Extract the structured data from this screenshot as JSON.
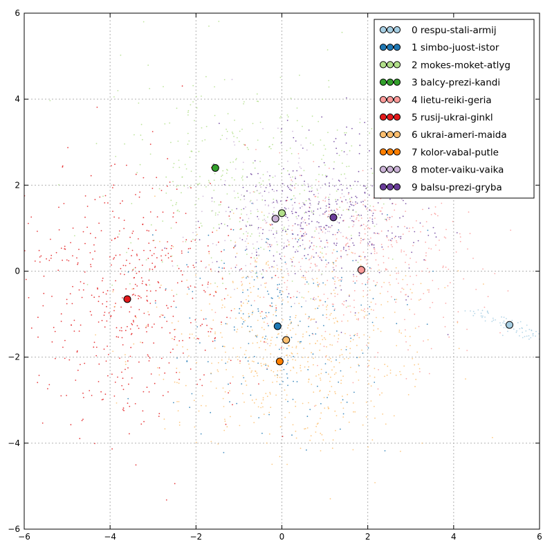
{
  "chart_data": {
    "type": "scatter",
    "title": "",
    "xlabel": "",
    "ylabel": "",
    "xlim": [
      -6,
      6
    ],
    "ylim": [
      -6,
      6
    ],
    "x_ticks": [
      "−6",
      "−4",
      "−2",
      "0",
      "2",
      "4",
      "6"
    ],
    "y_ticks": [
      "−6",
      "−4",
      "−2",
      "0",
      "2",
      "4",
      "6"
    ],
    "grid": true,
    "legend_position": "top-right",
    "series": [
      {
        "name": "0 respu-stali-armij",
        "color": "#a6cee3",
        "centroid": [
          5.3,
          -1.25
        ]
      },
      {
        "name": "1 simbo-juost-istor",
        "color": "#1f78b4",
        "centroid": [
          -0.1,
          -1.28
        ]
      },
      {
        "name": "2 mokes-moket-atlyg",
        "color": "#b2df8a",
        "centroid": [
          0.0,
          1.35
        ]
      },
      {
        "name": "3 balcy-prezi-kandi",
        "color": "#33a02c",
        "centroid": [
          -1.55,
          2.4
        ]
      },
      {
        "name": "4 lietu-reiki-geria",
        "color": "#fb9a99",
        "centroid": [
          1.85,
          0.03
        ]
      },
      {
        "name": "5 rusij-ukrai-ginkl",
        "color": "#e31a1c",
        "centroid": [
          -3.6,
          -0.65
        ]
      },
      {
        "name": "6 ukrai-ameri-maida",
        "color": "#fdbf6f",
        "centroid": [
          0.1,
          -1.6
        ]
      },
      {
        "name": "7 kolor-vabal-putle",
        "color": "#ff7f00",
        "centroid": [
          -0.05,
          -2.1
        ]
      },
      {
        "name": "8 moter-vaiku-vaika",
        "color": "#cab2d6",
        "centroid": [
          -0.15,
          1.22
        ]
      },
      {
        "name": "9 balsu-prezi-gryba",
        "color": "#6a3d9a",
        "centroid": [
          1.2,
          1.25
        ]
      }
    ],
    "point_clouds": [
      {
        "series": 0,
        "center": [
          5.3,
          -1.25
        ],
        "spread": [
          0.35,
          0.15
        ],
        "count": 70,
        "stretch": [
          -0.8,
          0.35
        ]
      },
      {
        "series": 1,
        "center": [
          -0.1,
          -1.2
        ],
        "spread": [
          1.5,
          1.2
        ],
        "count": 220
      },
      {
        "series": 2,
        "center": [
          -0.8,
          2.2
        ],
        "spread": [
          1.6,
          1.2
        ],
        "count": 360
      },
      {
        "series": 4,
        "center": [
          1.9,
          0.3
        ],
        "spread": [
          1.4,
          1.1
        ],
        "count": 420
      },
      {
        "series": 5,
        "center": [
          -3.5,
          -0.5
        ],
        "spread": [
          1.4,
          1.5
        ],
        "count": 520
      },
      {
        "series": 6,
        "center": [
          0.3,
          -1.7
        ],
        "spread": [
          1.6,
          1.2
        ],
        "count": 620
      },
      {
        "series": 8,
        "center": [
          0.0,
          1.2
        ],
        "spread": [
          1.0,
          0.9
        ],
        "count": 200
      },
      {
        "series": 9,
        "center": [
          1.0,
          1.3
        ],
        "spread": [
          1.2,
          0.9
        ],
        "count": 380
      }
    ]
  }
}
